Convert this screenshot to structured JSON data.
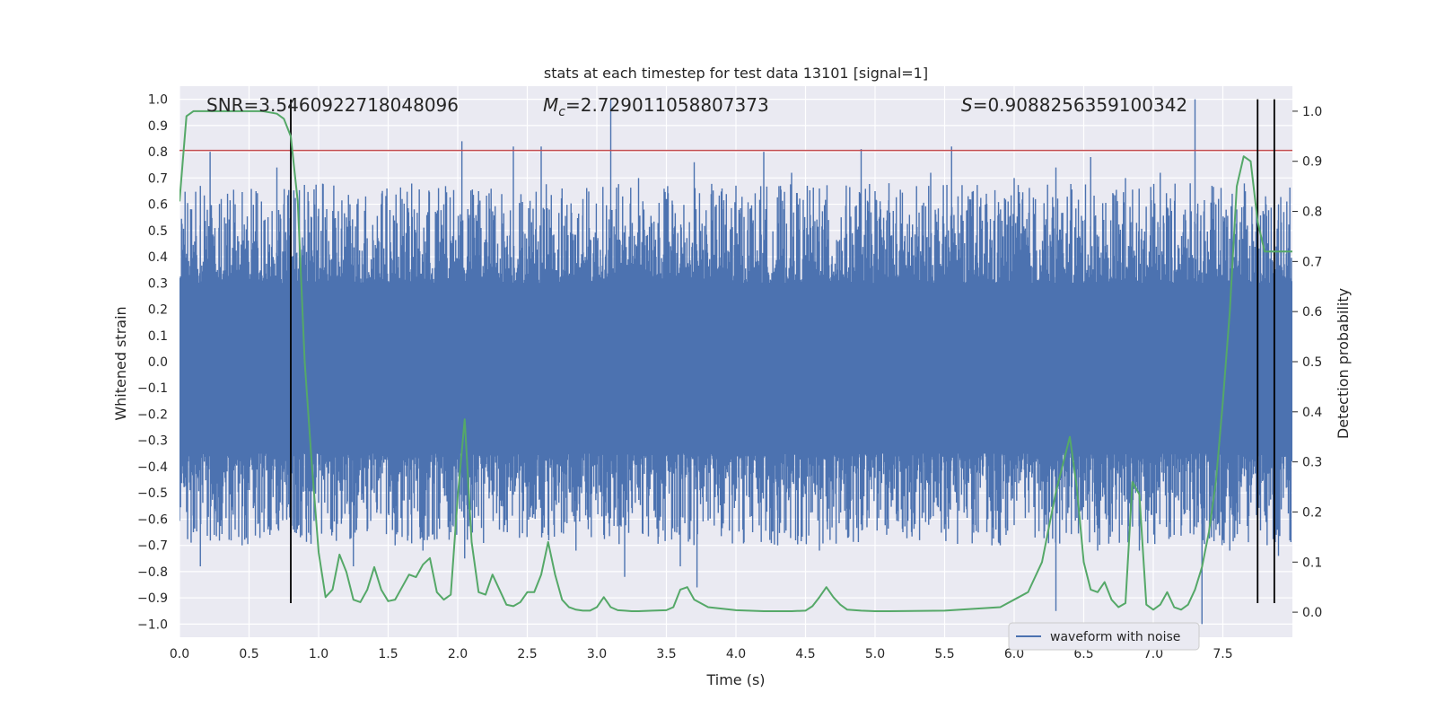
{
  "chart_data": {
    "type": "line",
    "title": "stats at each timestep for test data 13101 [signal=1]",
    "xlabel": "Time (s)",
    "ylabel_left": "Whitened strain",
    "ylabel_right": "Detection probability",
    "xlim": [
      0.0,
      8.0
    ],
    "ylim_left": [
      -1.05,
      1.05
    ],
    "ylim_right": [
      -0.05,
      1.05
    ],
    "x_ticks": [
      0.0,
      0.5,
      1.0,
      1.5,
      2.0,
      2.5,
      3.0,
      3.5,
      4.0,
      4.5,
      5.0,
      5.5,
      6.0,
      6.5,
      7.0,
      7.5
    ],
    "x_tick_labels": [
      "0.0",
      "0.5",
      "1.0",
      "1.5",
      "2.0",
      "2.5",
      "3.0",
      "3.5",
      "4.0",
      "4.5",
      "5.0",
      "5.5",
      "6.0",
      "6.5",
      "7.0",
      "7.5"
    ],
    "y_left_ticks": [
      1.0,
      0.9,
      0.8,
      0.7,
      0.6,
      0.5,
      0.4,
      0.3,
      0.2,
      0.1,
      0.0,
      -0.1,
      -0.2,
      -0.3,
      -0.4,
      -0.5,
      -0.6,
      -0.7,
      -0.8,
      -0.9,
      -1.0
    ],
    "y_left_tick_labels": [
      "1.0",
      "0.9",
      "0.8",
      "0.7",
      "0.6",
      "0.5",
      "0.4",
      "0.3",
      "0.2",
      "0.1",
      "0.0",
      "−0.1",
      "−0.2",
      "−0.3",
      "−0.4",
      "−0.5",
      "−0.6",
      "−0.7",
      "−0.8",
      "−0.9",
      "−1.0"
    ],
    "y_right_ticks": [
      1.0,
      0.9,
      0.8,
      0.7,
      0.6,
      0.5,
      0.4,
      0.3,
      0.2,
      0.1,
      0.0
    ],
    "y_right_tick_labels": [
      "1.0",
      "0.9",
      "0.8",
      "0.7",
      "0.6",
      "0.5",
      "0.4",
      "0.3",
      "0.2",
      "0.1",
      "0.0"
    ],
    "annotations": {
      "snr": "SNR=3.5460922718048096",
      "mc_symbol": "M",
      "mc_subscript": "c",
      "mc_value": "=2.729011058807373",
      "s_symbol": "S",
      "s_value": "=0.9088256359100342"
    },
    "legend": {
      "placement": "bottom-right",
      "entries": [
        "waveform with noise"
      ]
    },
    "grid": true,
    "waveform": {
      "name": "waveform with noise",
      "color": "#4c72b0",
      "dense_band": [
        -0.35,
        0.3
      ],
      "upper_peaks": [
        [
          0.15,
          0.67
        ],
        [
          0.22,
          0.8
        ],
        [
          0.3,
          0.62
        ],
        [
          0.4,
          0.6
        ],
        [
          0.55,
          0.65
        ],
        [
          0.7,
          0.74
        ],
        [
          0.75,
          0.6
        ],
        [
          0.95,
          0.55
        ],
        [
          1.2,
          0.55
        ],
        [
          1.45,
          0.6
        ],
        [
          1.6,
          0.62
        ],
        [
          1.9,
          0.6
        ],
        [
          2.03,
          0.84
        ],
        [
          2.15,
          0.65
        ],
        [
          2.4,
          0.82
        ],
        [
          2.6,
          0.82
        ],
        [
          2.75,
          0.66
        ],
        [
          2.9,
          0.62
        ],
        [
          3.1,
          1.0
        ],
        [
          3.3,
          0.7
        ],
        [
          3.5,
          0.62
        ],
        [
          3.7,
          0.76
        ],
        [
          3.9,
          0.66
        ],
        [
          4.2,
          0.8
        ],
        [
          4.4,
          0.72
        ],
        [
          4.6,
          0.66
        ],
        [
          4.9,
          0.81
        ],
        [
          5.1,
          0.68
        ],
        [
          5.4,
          0.72
        ],
        [
          5.55,
          0.82
        ],
        [
          5.8,
          0.64
        ],
        [
          6.0,
          0.7
        ],
        [
          6.3,
          0.74
        ],
        [
          6.55,
          0.78
        ],
        [
          6.8,
          0.7
        ],
        [
          7.05,
          0.72
        ],
        [
          7.3,
          1.0
        ],
        [
          7.45,
          0.6
        ],
        [
          7.6,
          0.58
        ],
        [
          7.75,
          0.83
        ],
        [
          7.9,
          0.6
        ]
      ],
      "lower_peaks": [
        [
          0.1,
          -0.65
        ],
        [
          0.15,
          -0.78
        ],
        [
          0.25,
          -0.66
        ],
        [
          0.45,
          -0.7
        ],
        [
          0.65,
          -0.66
        ],
        [
          0.85,
          -0.6
        ],
        [
          1.1,
          -0.65
        ],
        [
          1.25,
          -0.78
        ],
        [
          1.55,
          -0.7
        ],
        [
          1.75,
          -0.72
        ],
        [
          1.95,
          -0.65
        ],
        [
          2.05,
          -0.75
        ],
        [
          2.3,
          -0.64
        ],
        [
          2.65,
          -0.66
        ],
        [
          2.85,
          -0.72
        ],
        [
          3.05,
          -0.66
        ],
        [
          3.2,
          -0.82
        ],
        [
          3.6,
          -0.78
        ],
        [
          3.72,
          -0.86
        ],
        [
          4.05,
          -0.64
        ],
        [
          4.3,
          -0.7
        ],
        [
          4.6,
          -0.72
        ],
        [
          4.9,
          -0.62
        ],
        [
          5.2,
          -0.65
        ],
        [
          5.5,
          -0.62
        ],
        [
          5.9,
          -0.7
        ],
        [
          6.15,
          -0.67
        ],
        [
          6.3,
          -0.95
        ],
        [
          6.6,
          -0.72
        ],
        [
          6.9,
          -0.72
        ],
        [
          7.15,
          -0.66
        ],
        [
          7.35,
          -1.0
        ],
        [
          7.55,
          -0.72
        ],
        [
          7.75,
          -0.78
        ],
        [
          7.9,
          -0.74
        ]
      ]
    },
    "threshold_line": {
      "y_left": 0.805,
      "color": "#c44e52"
    },
    "vertical_lines": {
      "x": [
        0.8,
        7.75,
        7.87
      ],
      "y_range": [
        -0.92,
        1.0
      ],
      "color": "#000000"
    },
    "detection_probability": {
      "color": "#55a868",
      "x": [
        0.0,
        0.05,
        0.1,
        0.15,
        0.2,
        0.3,
        0.4,
        0.5,
        0.6,
        0.7,
        0.75,
        0.8,
        0.85,
        0.9,
        0.95,
        1.0,
        1.05,
        1.1,
        1.15,
        1.2,
        1.25,
        1.3,
        1.35,
        1.4,
        1.45,
        1.5,
        1.55,
        1.6,
        1.65,
        1.7,
        1.75,
        1.8,
        1.85,
        1.9,
        1.95,
        2.0,
        2.05,
        2.1,
        2.15,
        2.2,
        2.25,
        2.3,
        2.35,
        2.4,
        2.45,
        2.5,
        2.55,
        2.6,
        2.65,
        2.7,
        2.75,
        2.8,
        2.85,
        2.9,
        2.95,
        3.0,
        3.05,
        3.1,
        3.15,
        3.2,
        3.25,
        3.3,
        3.4,
        3.5,
        3.55,
        3.6,
        3.65,
        3.7,
        3.8,
        4.0,
        4.2,
        4.4,
        4.5,
        4.55,
        4.6,
        4.65,
        4.7,
        4.75,
        4.8,
        4.9,
        5.0,
        5.1,
        5.5,
        5.9,
        6.1,
        6.2,
        6.3,
        6.4,
        6.45,
        6.5,
        6.55,
        6.6,
        6.65,
        6.7,
        6.75,
        6.8,
        6.85,
        6.9,
        6.95,
        7.0,
        7.05,
        7.1,
        7.15,
        7.2,
        7.25,
        7.3,
        7.35,
        7.4,
        7.45,
        7.5,
        7.55,
        7.6,
        7.65,
        7.7,
        7.75,
        7.8,
        7.85,
        7.9,
        7.95,
        8.0
      ],
      "y": [
        0.82,
        0.99,
        1.0,
        1.0,
        1.0,
        1.0,
        1.0,
        1.0,
        1.0,
        0.995,
        0.985,
        0.95,
        0.82,
        0.5,
        0.3,
        0.12,
        0.03,
        0.045,
        0.115,
        0.08,
        0.025,
        0.02,
        0.045,
        0.09,
        0.045,
        0.022,
        0.025,
        0.05,
        0.075,
        0.07,
        0.095,
        0.108,
        0.04,
        0.025,
        0.035,
        0.23,
        0.385,
        0.14,
        0.04,
        0.035,
        0.075,
        0.045,
        0.015,
        0.012,
        0.02,
        0.04,
        0.04,
        0.075,
        0.14,
        0.075,
        0.025,
        0.01,
        0.005,
        0.003,
        0.003,
        0.01,
        0.03,
        0.01,
        0.004,
        0.003,
        0.002,
        0.002,
        0.003,
        0.004,
        0.01,
        0.045,
        0.05,
        0.025,
        0.01,
        0.004,
        0.002,
        0.002,
        0.003,
        0.012,
        0.03,
        0.05,
        0.03,
        0.015,
        0.005,
        0.003,
        0.002,
        0.002,
        0.003,
        0.01,
        0.04,
        0.1,
        0.24,
        0.35,
        0.25,
        0.1,
        0.045,
        0.04,
        0.06,
        0.025,
        0.01,
        0.018,
        0.26,
        0.235,
        0.015,
        0.005,
        0.015,
        0.04,
        0.01,
        0.005,
        0.015,
        0.045,
        0.09,
        0.16,
        0.26,
        0.42,
        0.6,
        0.85,
        0.91,
        0.9,
        0.78,
        0.72,
        0.72,
        0.72,
        0.72,
        0.72
      ]
    }
  }
}
